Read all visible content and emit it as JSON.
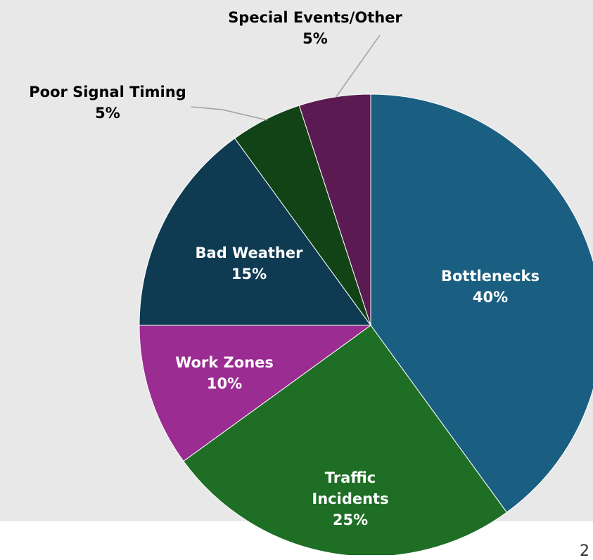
{
  "chart_data": {
    "type": "pie",
    "categories": [
      "Bottlenecks",
      "Traffic Incidents",
      "Work Zones",
      "Bad Weather",
      "Poor Signal Timing",
      "Special Events/Other"
    ],
    "values": [
      40,
      25,
      10,
      15,
      5,
      5
    ],
    "value_labels": [
      "40%",
      "25%",
      "10%",
      "15%",
      "5%",
      "5%"
    ],
    "colors": [
      "#1a5f82",
      "#1e6e25",
      "#9b2c92",
      "#0e3a52",
      "#124317",
      "#5c1a52"
    ]
  },
  "page_number": "2"
}
